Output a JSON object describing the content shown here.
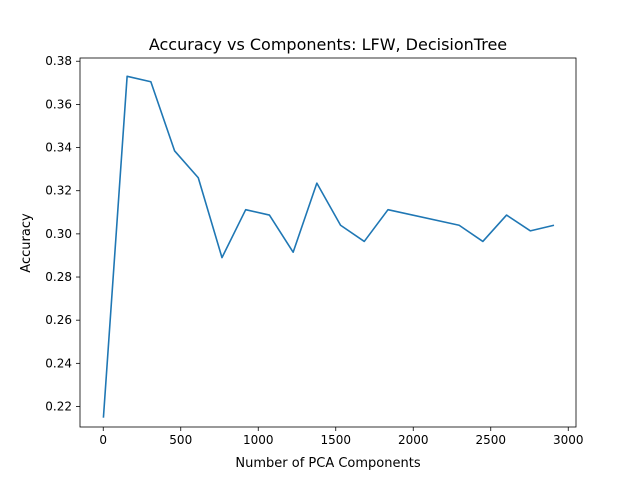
{
  "chart_data": {
    "type": "line",
    "title": "Accuracy vs Components: LFW, DecisionTree",
    "xlabel": "Number of PCA Components",
    "ylabel": "Accuracy",
    "xlim": [
      -150,
      3050
    ],
    "ylim": [
      0.2105,
      0.3815
    ],
    "xticks": [
      0,
      500,
      1000,
      1500,
      2000,
      2500,
      3000
    ],
    "xtick_labels": [
      "0",
      "500",
      "1000",
      "1500",
      "2000",
      "2500",
      "3000"
    ],
    "yticks": [
      0.22,
      0.24,
      0.26,
      0.28,
      0.3,
      0.32,
      0.34,
      0.36,
      0.38
    ],
    "ytick_labels": [
      "0.22",
      "0.24",
      "0.26",
      "0.28",
      "0.30",
      "0.32",
      "0.34",
      "0.36",
      "0.38"
    ],
    "grid": false,
    "series": [
      {
        "color": "#1f77b4",
        "x": [
          1,
          154,
          307,
          460,
          613,
          766,
          919,
          1072,
          1225,
          1378,
          1531,
          1684,
          1837,
          2296,
          2449,
          2602,
          2755,
          2908
        ],
        "y": [
          0.2148,
          0.373,
          0.3705,
          0.3385,
          0.326,
          0.289,
          0.3112,
          0.3087,
          0.2915,
          0.3235,
          0.304,
          0.2965,
          0.3112,
          0.304,
          0.2965,
          0.3087,
          0.3014,
          0.304
        ]
      }
    ]
  }
}
